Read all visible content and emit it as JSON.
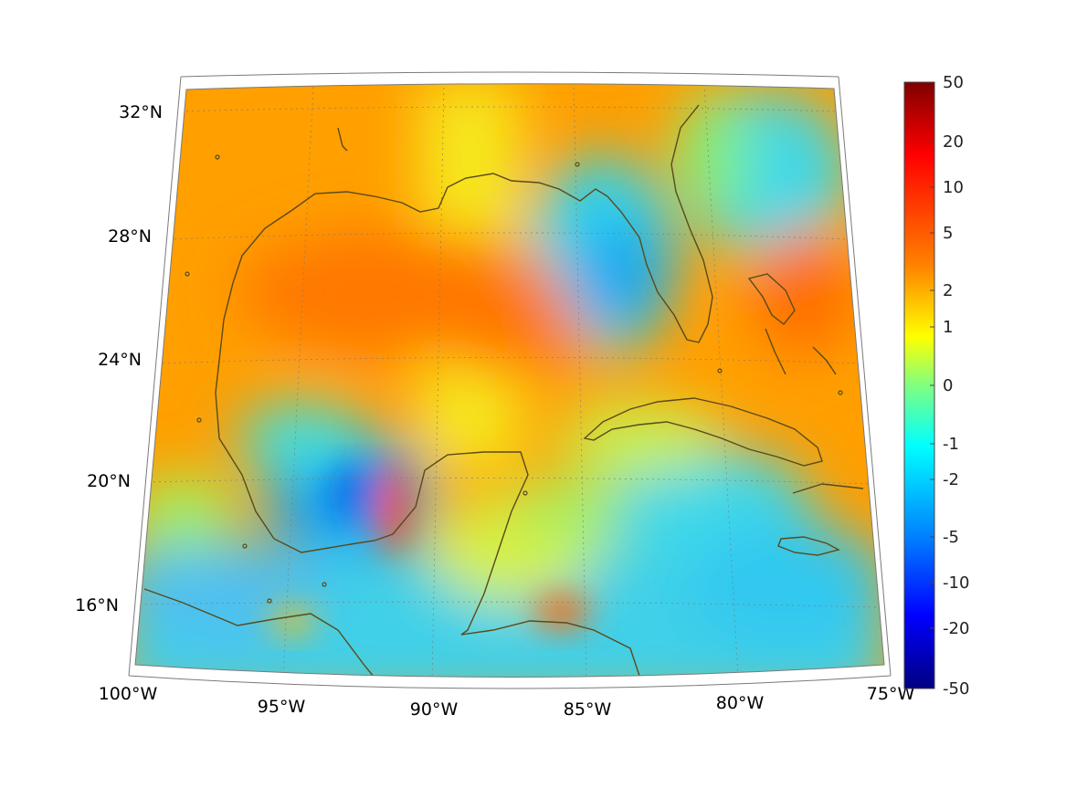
{
  "map": {
    "projection": "conic",
    "lon_range": [
      -100,
      -75
    ],
    "lat_range": [
      14,
      33
    ],
    "lat_ticks": [
      "32°N",
      "28°N",
      "24°N",
      "20°N",
      "16°N"
    ],
    "lon_ticks": [
      "100°W",
      "95°W",
      "90°W",
      "85°W",
      "80°W",
      "75°W"
    ],
    "grid": "dotted",
    "coastline_color": "#5a4a1a",
    "features": [
      "Gulf of Mexico",
      "Florida",
      "Cuba",
      "Yucatán Peninsula",
      "Bahamas",
      "Jamaica",
      "Central America"
    ]
  },
  "colorbar": {
    "colormap": "jet",
    "scale": "symmetric-log",
    "position": "right",
    "tick_labels": [
      "50",
      "20",
      "10",
      "5",
      "2",
      "1",
      "0",
      "-1",
      "-2",
      "-5",
      "-10",
      "-20",
      "-50"
    ],
    "colors": [
      "#000080",
      "#0000ff",
      "#0080ff",
      "#00ffff",
      "#80ff80",
      "#ffff00",
      "#ff8000",
      "#ff0000",
      "#800000"
    ]
  }
}
